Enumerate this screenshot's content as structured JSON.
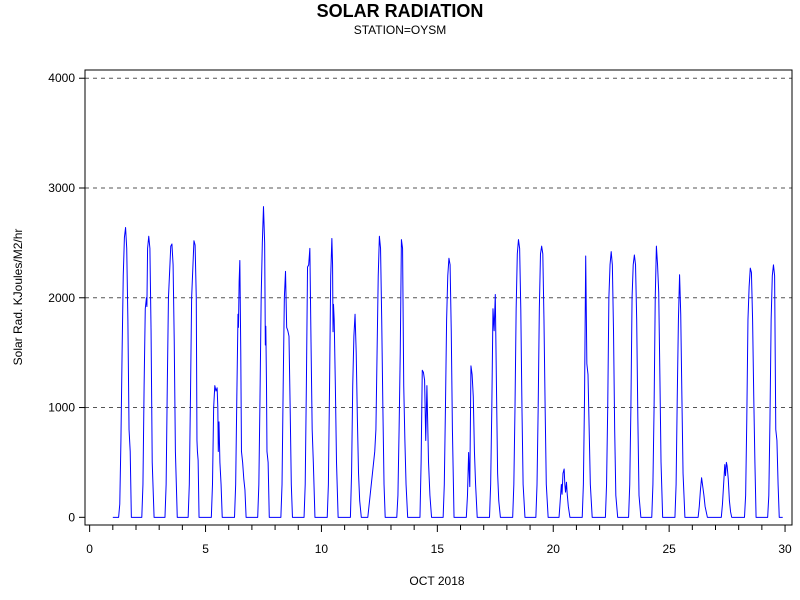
{
  "chart_data": {
    "type": "line",
    "title": "SOLAR RADIATION",
    "subtitle": "STATION=OYSM",
    "xlabel": "OCT 2018",
    "ylabel": "Solar Rad. KJoules/M2/hr",
    "xlim": [
      -0.2,
      30.3
    ],
    "ylim": [
      -70,
      4075
    ],
    "x_ticks": [
      0,
      5,
      10,
      15,
      20,
      25,
      30
    ],
    "y_ticks": [
      0,
      1000,
      2000,
      3000,
      4000
    ],
    "grid": "horizontal-dashed",
    "line_color": "#0000ff",
    "series": [
      {
        "points": [
          [
            1.0,
            0
          ],
          [
            1.2,
            0
          ],
          [
            1.25,
            0
          ],
          [
            1.3,
            120
          ],
          [
            1.35,
            700
          ],
          [
            1.4,
            1500
          ],
          [
            1.45,
            2200
          ],
          [
            1.5,
            2550
          ],
          [
            1.55,
            2640
          ],
          [
            1.6,
            2450
          ],
          [
            1.65,
            1800
          ],
          [
            1.7,
            800
          ],
          [
            1.75,
            600
          ],
          [
            1.8,
            0
          ],
          [
            2.25,
            0
          ],
          [
            2.3,
            300
          ],
          [
            2.35,
            1200
          ],
          [
            2.4,
            1900
          ],
          [
            2.45,
            2000
          ],
          [
            2.47,
            1920
          ],
          [
            2.5,
            2450
          ],
          [
            2.55,
            2560
          ],
          [
            2.6,
            2450
          ],
          [
            2.65,
            1700
          ],
          [
            2.7,
            500
          ],
          [
            2.78,
            0
          ],
          [
            3.25,
            0
          ],
          [
            3.3,
            300
          ],
          [
            3.35,
            1200
          ],
          [
            3.4,
            2000
          ],
          [
            3.5,
            2470
          ],
          [
            3.55,
            2490
          ],
          [
            3.6,
            2300
          ],
          [
            3.65,
            1600
          ],
          [
            3.7,
            600
          ],
          [
            3.78,
            0
          ],
          [
            4.25,
            0
          ],
          [
            4.3,
            300
          ],
          [
            4.35,
            1100
          ],
          [
            4.4,
            2000
          ],
          [
            4.5,
            2520
          ],
          [
            4.55,
            2480
          ],
          [
            4.6,
            2000
          ],
          [
            4.63,
            700
          ],
          [
            4.65,
            600
          ],
          [
            4.68,
            520
          ],
          [
            4.72,
            0
          ],
          [
            5.25,
            0
          ],
          [
            5.3,
            300
          ],
          [
            5.35,
            1000
          ],
          [
            5.4,
            1200
          ],
          [
            5.45,
            1150
          ],
          [
            5.5,
            1180
          ],
          [
            5.53,
            1000
          ],
          [
            5.55,
            600
          ],
          [
            5.58,
            870
          ],
          [
            5.62,
            500
          ],
          [
            5.67,
            300
          ],
          [
            5.72,
            0
          ],
          [
            6.25,
            0
          ],
          [
            6.3,
            300
          ],
          [
            6.35,
            1100
          ],
          [
            6.4,
            1850
          ],
          [
            6.42,
            1730
          ],
          [
            6.45,
            2150
          ],
          [
            6.48,
            2340
          ],
          [
            6.52,
            1500
          ],
          [
            6.55,
            600
          ],
          [
            6.6,
            500
          ],
          [
            6.65,
            350
          ],
          [
            6.7,
            250
          ],
          [
            6.75,
            0
          ],
          [
            7.25,
            0
          ],
          [
            7.3,
            300
          ],
          [
            7.35,
            1100
          ],
          [
            7.4,
            2000
          ],
          [
            7.45,
            2500
          ],
          [
            7.5,
            2830
          ],
          [
            7.55,
            2500
          ],
          [
            7.58,
            1570
          ],
          [
            7.6,
            1740
          ],
          [
            7.63,
            1200
          ],
          [
            7.65,
            600
          ],
          [
            7.7,
            500
          ],
          [
            7.75,
            0
          ],
          [
            8.25,
            0
          ],
          [
            8.3,
            300
          ],
          [
            8.35,
            1200
          ],
          [
            8.4,
            2000
          ],
          [
            8.45,
            2240
          ],
          [
            8.5,
            1730
          ],
          [
            8.55,
            1700
          ],
          [
            8.6,
            1650
          ],
          [
            8.65,
            1000
          ],
          [
            8.7,
            300
          ],
          [
            8.75,
            0
          ],
          [
            9.25,
            0
          ],
          [
            9.3,
            300
          ],
          [
            9.35,
            1200
          ],
          [
            9.4,
            2280
          ],
          [
            9.45,
            2300
          ],
          [
            9.5,
            2450
          ],
          [
            9.55,
            1600
          ],
          [
            9.6,
            800
          ],
          [
            9.65,
            500
          ],
          [
            9.72,
            0
          ],
          [
            10.25,
            0
          ],
          [
            10.3,
            300
          ],
          [
            10.35,
            1200
          ],
          [
            10.4,
            2200
          ],
          [
            10.45,
            2540
          ],
          [
            10.48,
            2300
          ],
          [
            10.5,
            1690
          ],
          [
            10.52,
            1940
          ],
          [
            10.55,
            1800
          ],
          [
            10.6,
            1200
          ],
          [
            10.65,
            500
          ],
          [
            10.72,
            0
          ],
          [
            11.25,
            0
          ],
          [
            11.3,
            400
          ],
          [
            11.35,
            1200
          ],
          [
            11.4,
            1650
          ],
          [
            11.45,
            1850
          ],
          [
            11.5,
            1500
          ],
          [
            11.55,
            900
          ],
          [
            11.6,
            400
          ],
          [
            11.65,
            150
          ],
          [
            11.72,
            0
          ],
          [
            12.0,
            0
          ],
          [
            12.1,
            200
          ],
          [
            12.2,
            400
          ],
          [
            12.3,
            600
          ],
          [
            12.35,
            800
          ],
          [
            12.4,
            1500
          ],
          [
            12.45,
            2200
          ],
          [
            12.5,
            2560
          ],
          [
            12.55,
            2450
          ],
          [
            12.6,
            1800
          ],
          [
            12.65,
            1000
          ],
          [
            12.7,
            300
          ],
          [
            12.75,
            0
          ],
          [
            13.25,
            0
          ],
          [
            13.3,
            200
          ],
          [
            13.35,
            800
          ],
          [
            13.4,
            1500
          ],
          [
            13.45,
            2530
          ],
          [
            13.5,
            2450
          ],
          [
            13.55,
            1200
          ],
          [
            13.6,
            700
          ],
          [
            13.65,
            300
          ],
          [
            13.72,
            0
          ],
          [
            14.25,
            0
          ],
          [
            14.3,
            500
          ],
          [
            14.35,
            1340
          ],
          [
            14.4,
            1320
          ],
          [
            14.45,
            1250
          ],
          [
            14.5,
            700
          ],
          [
            14.55,
            1200
          ],
          [
            14.58,
            900
          ],
          [
            14.62,
            500
          ],
          [
            14.68,
            200
          ],
          [
            14.75,
            0
          ],
          [
            15.25,
            0
          ],
          [
            15.3,
            300
          ],
          [
            15.35,
            1000
          ],
          [
            15.4,
            1800
          ],
          [
            15.45,
            2200
          ],
          [
            15.5,
            2360
          ],
          [
            15.55,
            2300
          ],
          [
            15.6,
            1700
          ],
          [
            15.65,
            800
          ],
          [
            15.72,
            0
          ],
          [
            16.25,
            0
          ],
          [
            16.3,
            200
          ],
          [
            16.35,
            590
          ],
          [
            16.4,
            280
          ],
          [
            16.45,
            1380
          ],
          [
            16.5,
            1300
          ],
          [
            16.55,
            1100
          ],
          [
            16.6,
            600
          ],
          [
            16.65,
            300
          ],
          [
            16.72,
            0
          ],
          [
            17.25,
            0
          ],
          [
            17.3,
            300
          ],
          [
            17.35,
            1000
          ],
          [
            17.4,
            1900
          ],
          [
            17.45,
            1700
          ],
          [
            17.5,
            2030
          ],
          [
            17.55,
            1200
          ],
          [
            17.6,
            400
          ],
          [
            17.65,
            150
          ],
          [
            17.72,
            0
          ],
          [
            18.25,
            0
          ],
          [
            18.3,
            300
          ],
          [
            18.35,
            1000
          ],
          [
            18.4,
            1900
          ],
          [
            18.45,
            2400
          ],
          [
            18.5,
            2530
          ],
          [
            18.55,
            2450
          ],
          [
            18.6,
            1900
          ],
          [
            18.65,
            1000
          ],
          [
            18.7,
            300
          ],
          [
            18.78,
            0
          ],
          [
            19.25,
            0
          ],
          [
            19.3,
            300
          ],
          [
            19.35,
            1000
          ],
          [
            19.4,
            1900
          ],
          [
            19.45,
            2400
          ],
          [
            19.5,
            2470
          ],
          [
            19.55,
            2400
          ],
          [
            19.6,
            1800
          ],
          [
            19.65,
            1000
          ],
          [
            19.7,
            300
          ],
          [
            19.78,
            0
          ],
          [
            20.25,
            0
          ],
          [
            20.3,
            150
          ],
          [
            20.35,
            300
          ],
          [
            20.38,
            210
          ],
          [
            20.42,
            400
          ],
          [
            20.47,
            440
          ],
          [
            20.5,
            300
          ],
          [
            20.53,
            230
          ],
          [
            20.57,
            320
          ],
          [
            20.6,
            220
          ],
          [
            20.65,
            100
          ],
          [
            20.72,
            0
          ],
          [
            21.25,
            0
          ],
          [
            21.3,
            300
          ],
          [
            21.35,
            1100
          ],
          [
            21.4,
            2380
          ],
          [
            21.45,
            1400
          ],
          [
            21.5,
            1300
          ],
          [
            21.55,
            800
          ],
          [
            21.6,
            300
          ],
          [
            21.68,
            0
          ],
          [
            22.25,
            0
          ],
          [
            22.3,
            300
          ],
          [
            22.35,
            1000
          ],
          [
            22.4,
            2000
          ],
          [
            22.45,
            2300
          ],
          [
            22.5,
            2420
          ],
          [
            22.55,
            2300
          ],
          [
            22.6,
            1700
          ],
          [
            22.65,
            800
          ],
          [
            22.7,
            200
          ],
          [
            22.78,
            0
          ],
          [
            23.25,
            0
          ],
          [
            23.3,
            300
          ],
          [
            23.35,
            1000
          ],
          [
            23.4,
            2000
          ],
          [
            23.45,
            2300
          ],
          [
            23.5,
            2390
          ],
          [
            23.55,
            2300
          ],
          [
            23.6,
            1800
          ],
          [
            23.65,
            900
          ],
          [
            23.7,
            200
          ],
          [
            23.78,
            0
          ],
          [
            24.25,
            0
          ],
          [
            24.3,
            300
          ],
          [
            24.35,
            1000
          ],
          [
            24.4,
            2000
          ],
          [
            24.45,
            2470
          ],
          [
            24.5,
            2300
          ],
          [
            24.55,
            2050
          ],
          [
            24.6,
            1300
          ],
          [
            24.65,
            500
          ],
          [
            24.72,
            0
          ],
          [
            25.25,
            0
          ],
          [
            25.3,
            300
          ],
          [
            25.35,
            1100
          ],
          [
            25.4,
            1800
          ],
          [
            25.45,
            2210
          ],
          [
            25.5,
            1850
          ],
          [
            25.55,
            1100
          ],
          [
            25.6,
            400
          ],
          [
            25.68,
            0
          ],
          [
            26.25,
            0
          ],
          [
            26.3,
            100
          ],
          [
            26.35,
            250
          ],
          [
            26.4,
            360
          ],
          [
            26.45,
            280
          ],
          [
            26.5,
            200
          ],
          [
            26.55,
            100
          ],
          [
            26.6,
            50
          ],
          [
            26.65,
            0
          ],
          [
            27.25,
            0
          ],
          [
            27.3,
            120
          ],
          [
            27.35,
            300
          ],
          [
            27.4,
            480
          ],
          [
            27.43,
            380
          ],
          [
            27.47,
            500
          ],
          [
            27.5,
            470
          ],
          [
            27.55,
            350
          ],
          [
            27.6,
            150
          ],
          [
            27.65,
            50
          ],
          [
            27.7,
            0
          ],
          [
            28.25,
            0
          ],
          [
            28.3,
            200
          ],
          [
            28.35,
            900
          ],
          [
            28.4,
            1800
          ],
          [
            28.45,
            2100
          ],
          [
            28.5,
            2270
          ],
          [
            28.55,
            2230
          ],
          [
            28.6,
            1800
          ],
          [
            28.65,
            1100
          ],
          [
            28.7,
            500
          ],
          [
            28.75,
            0
          ],
          [
            29.25,
            0
          ],
          [
            29.3,
            200
          ],
          [
            29.35,
            900
          ],
          [
            29.4,
            1800
          ],
          [
            29.45,
            2200
          ],
          [
            29.5,
            2300
          ],
          [
            29.55,
            2200
          ],
          [
            29.6,
            800
          ],
          [
            29.65,
            700
          ],
          [
            29.7,
            300
          ],
          [
            29.75,
            0
          ],
          [
            29.9,
            0
          ]
        ]
      }
    ]
  }
}
